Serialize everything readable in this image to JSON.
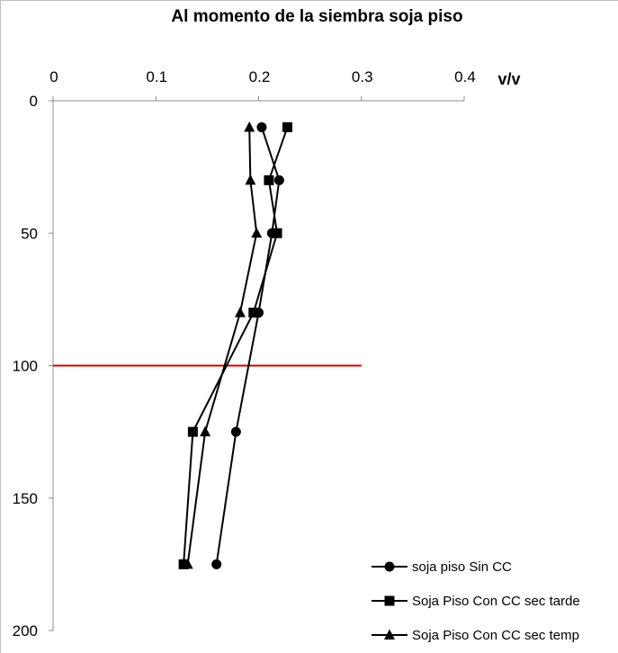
{
  "chart_data": {
    "type": "line",
    "title": "Al momento de la siembra soja piso",
    "xlabel": "v/v",
    "ylabel": "",
    "x_axis_position": "top",
    "y_axis_inverted": true,
    "xlim": [
      0,
      0.4
    ],
    "ylim": [
      0,
      200
    ],
    "x_ticks": [
      0,
      0.1,
      0.2,
      0.3,
      0.4
    ],
    "x_tick_labels": [
      "0",
      "0.1",
      "0.2",
      "0.3",
      "0.4"
    ],
    "y_ticks": [
      0,
      50,
      100,
      150,
      200
    ],
    "y_tick_labels": [
      "0",
      "50",
      "100",
      "150",
      "200"
    ],
    "grid": false,
    "legend_position": "bottom-right",
    "series": [
      {
        "name": "soja piso Sin CC",
        "marker": "circle",
        "color": "#000000",
        "points": [
          [
            0.203,
            10
          ],
          [
            0.22,
            30
          ],
          [
            0.213,
            50
          ],
          [
            0.2,
            80
          ],
          [
            0.178,
            125
          ],
          [
            0.159,
            175
          ]
        ]
      },
      {
        "name": "Soja Piso Con CC sec tarde",
        "marker": "square",
        "color": "#000000",
        "points": [
          [
            0.228,
            10
          ],
          [
            0.21,
            30
          ],
          [
            0.218,
            50
          ],
          [
            0.195,
            80
          ],
          [
            0.136,
            125
          ],
          [
            0.127,
            175
          ]
        ]
      },
      {
        "name": "Soja Piso Con CC sec temp",
        "marker": "triangle",
        "color": "#000000",
        "points": [
          [
            0.191,
            10
          ],
          [
            0.192,
            30
          ],
          [
            0.198,
            50
          ],
          [
            0.182,
            80
          ],
          [
            0.148,
            125
          ],
          [
            0.131,
            175
          ]
        ]
      }
    ],
    "reference_line": {
      "y": 100,
      "x_range": [
        0,
        0.3
      ],
      "color": "#cc0000"
    }
  }
}
